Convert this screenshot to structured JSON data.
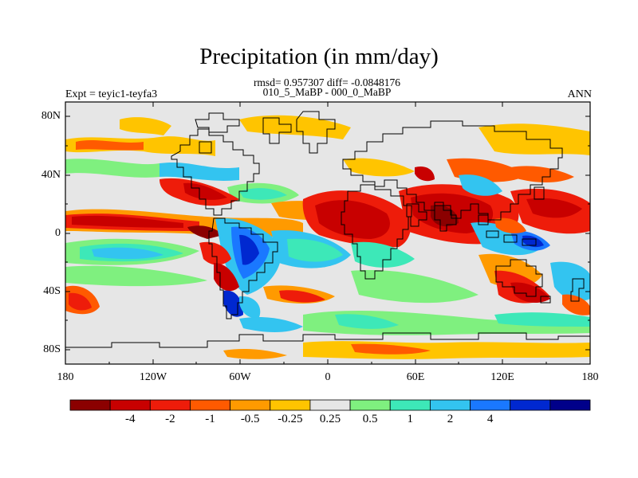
{
  "title": "Precipitation (in mm/day)",
  "stats_line": "rmsd= 0.957307 diff= -0.0848176",
  "subtitle": "010_5_MaBP - 000_0_MaBP",
  "left_label": "Expt = teyic1-teyfa3",
  "right_label": "ANN",
  "lat_ticks": [
    "80N",
    "40N",
    "0",
    "40S",
    "80S"
  ],
  "lon_ticks": [
    "180",
    "120W",
    "60W",
    "0",
    "60E",
    "120E",
    "180"
  ],
  "colorbar": {
    "colors": [
      "#8b0000",
      "#c80000",
      "#ee1c0a",
      "#ff5a00",
      "#ff9a00",
      "#ffc400",
      "#e6e6e6",
      "#7ff07f",
      "#3de8b8",
      "#33c4f0",
      "#1a78ff",
      "#0028d0",
      "#00008a"
    ],
    "labels": [
      "-4",
      "-2",
      "-1",
      "-0.5",
      "-0.25",
      "0.25",
      "0.5",
      "1",
      "2",
      "4"
    ]
  }
}
